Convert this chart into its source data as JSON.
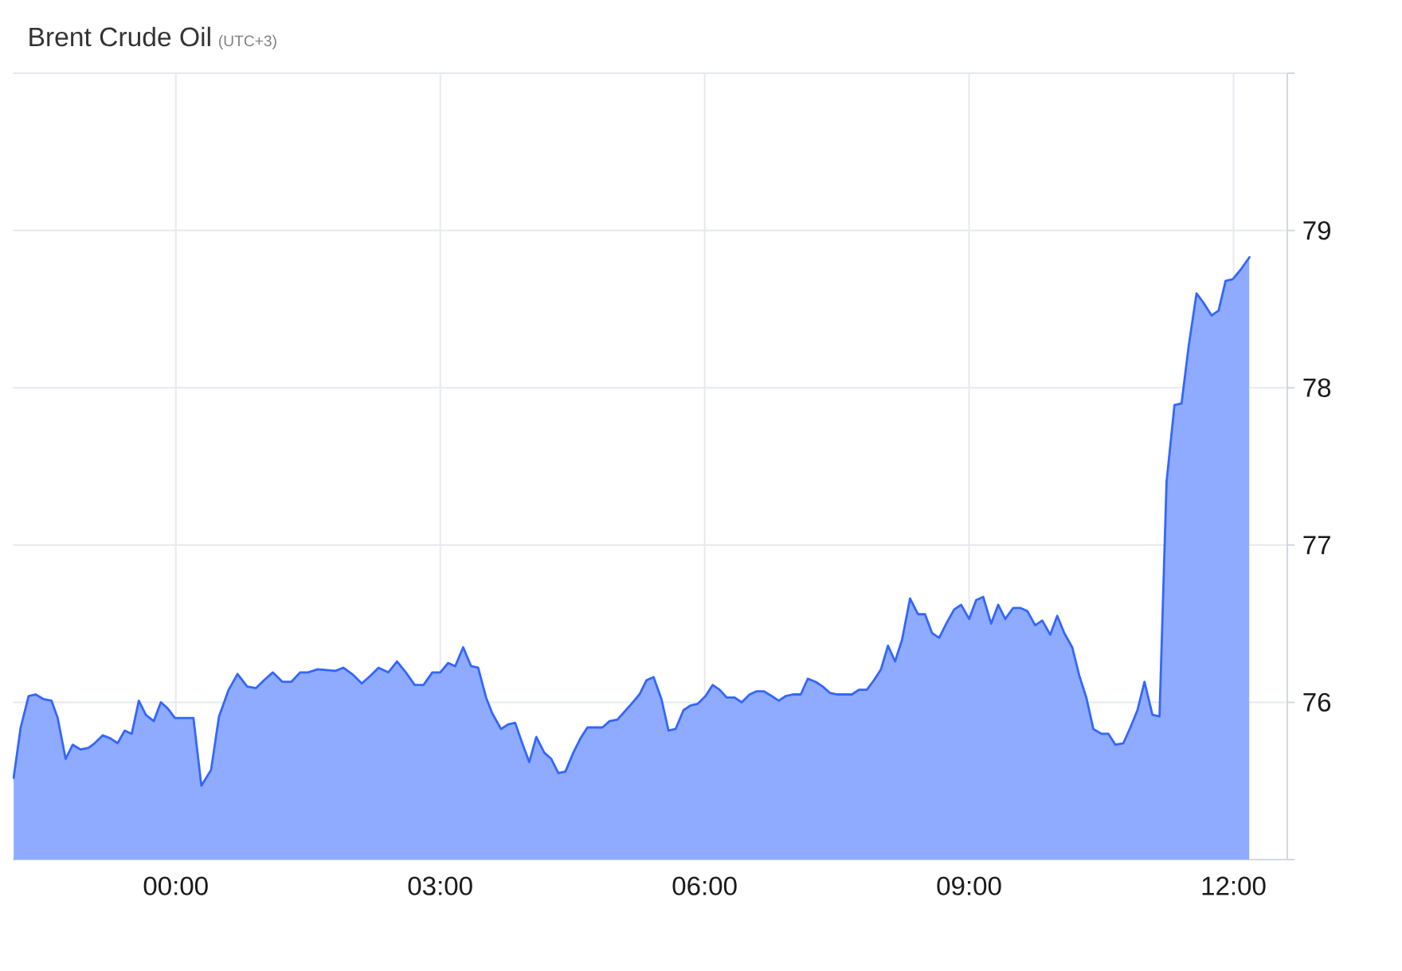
{
  "chart_data": {
    "type": "area",
    "title": "Brent Crude Oil",
    "subtitle": "(UTC+3)",
    "color": "#3366ff",
    "x": [
      -1.84,
      -1.76,
      -1.67,
      -1.59,
      -1.5,
      -1.41,
      -1.34,
      -1.25,
      -1.17,
      -1.08,
      -0.99,
      -0.92,
      -0.83,
      -0.74,
      -0.66,
      -0.58,
      -0.5,
      -0.42,
      -0.34,
      -0.25,
      -0.17,
      -0.09,
      -0.01,
      0.2,
      0.29,
      0.4,
      0.49,
      0.6,
      0.7,
      0.81,
      0.91,
      1.0,
      1.1,
      1.21,
      1.31,
      1.41,
      1.5,
      1.61,
      1.81,
      1.9,
      2.0,
      2.11,
      2.21,
      2.3,
      2.41,
      2.51,
      2.61,
      2.71,
      2.81,
      2.91,
      3.0,
      3.09,
      3.17,
      3.26,
      3.35,
      3.43,
      3.52,
      3.59,
      3.69,
      3.77,
      3.85,
      3.93,
      4.01,
      4.09,
      4.18,
      4.26,
      4.34,
      4.42,
      4.51,
      4.59,
      4.67,
      4.75,
      4.84,
      4.92,
      5.01,
      5.09,
      5.17,
      5.26,
      5.34,
      5.42,
      5.51,
      5.59,
      5.67,
      5.76,
      5.84,
      5.92,
      6.01,
      6.09,
      6.17,
      6.25,
      6.34,
      6.42,
      6.51,
      6.59,
      6.67,
      6.76,
      6.84,
      6.92,
      7.0,
      7.09,
      7.17,
      7.26,
      7.34,
      7.42,
      7.51,
      7.59,
      7.67,
      7.75,
      7.84,
      7.92,
      8.0,
      8.08,
      8.16,
      8.24,
      8.33,
      8.42,
      8.5,
      8.58,
      8.66,
      8.75,
      8.83,
      8.91,
      9.0,
      9.08,
      9.16,
      9.25,
      9.33,
      9.41,
      9.5,
      9.58,
      9.66,
      9.75,
      9.83,
      9.92,
      10.0,
      10.08,
      10.17,
      10.25,
      10.33,
      10.41,
      10.5,
      10.58,
      10.66,
      10.75,
      10.83,
      10.91,
      10.99,
      11.08,
      11.16,
      11.24,
      11.33,
      11.41,
      11.49,
      11.58,
      11.66,
      11.75,
      11.83,
      11.91,
      11.99,
      12.08,
      12.18
    ],
    "values": [
      75.52,
      75.84,
      76.04,
      76.05,
      76.02,
      76.01,
      75.9,
      75.64,
      75.73,
      75.7,
      75.71,
      75.74,
      75.79,
      75.77,
      75.74,
      75.82,
      75.8,
      76.01,
      75.92,
      75.88,
      76.0,
      75.96,
      75.9,
      75.9,
      75.47,
      75.57,
      75.91,
      76.08,
      76.18,
      76.1,
      76.09,
      76.14,
      76.19,
      76.13,
      76.13,
      76.19,
      76.19,
      76.21,
      76.2,
      76.22,
      76.18,
      76.12,
      76.17,
      76.22,
      76.19,
      76.26,
      76.19,
      76.11,
      76.11,
      76.19,
      76.19,
      76.25,
      76.23,
      76.35,
      76.23,
      76.22,
      76.03,
      75.93,
      75.83,
      75.86,
      75.87,
      75.74,
      75.62,
      75.78,
      75.68,
      75.64,
      75.55,
      75.56,
      75.68,
      75.77,
      75.84,
      75.84,
      75.84,
      75.88,
      75.89,
      75.94,
      75.99,
      76.05,
      76.14,
      76.16,
      76.02,
      75.82,
      75.83,
      75.95,
      75.98,
      75.99,
      76.04,
      76.11,
      76.08,
      76.03,
      76.03,
      76.0,
      76.05,
      76.07,
      76.07,
      76.04,
      76.01,
      76.04,
      76.05,
      76.05,
      76.15,
      76.13,
      76.1,
      76.06,
      76.05,
      76.05,
      76.05,
      76.08,
      76.08,
      76.14,
      76.21,
      76.36,
      76.26,
      76.4,
      76.66,
      76.56,
      76.56,
      76.44,
      76.41,
      76.51,
      76.59,
      76.62,
      76.53,
      76.65,
      76.67,
      76.5,
      76.62,
      76.53,
      76.6,
      76.6,
      76.58,
      76.49,
      76.52,
      76.43,
      76.55,
      76.44,
      76.35,
      76.17,
      76.03,
      75.83,
      75.8,
      75.8,
      75.73,
      75.74,
      75.84,
      75.95,
      76.13,
      75.92,
      75.91,
      77.4,
      77.89,
      77.9,
      78.26,
      78.6,
      78.54,
      78.46,
      78.49,
      78.68,
      78.69,
      78.75,
      78.83
    ],
    "xlim": [
      -1.85,
      12.61
    ],
    "xticks": [
      {
        "value": 0,
        "label": "00:00"
      },
      {
        "value": 3,
        "label": "03:00"
      },
      {
        "value": 6,
        "label": "06:00"
      },
      {
        "value": 9,
        "label": "09:00"
      },
      {
        "value": 12,
        "label": "12:00"
      }
    ],
    "ylim": [
      75,
      80
    ],
    "yticks": [
      {
        "value": 75,
        "label": null
      },
      76,
      77,
      78,
      79,
      {
        "value": 80,
        "label": null
      }
    ],
    "grid": true
  }
}
